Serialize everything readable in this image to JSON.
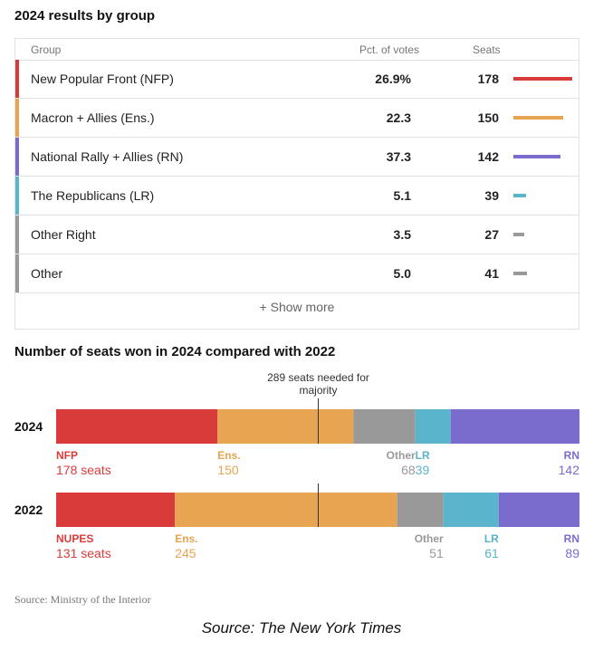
{
  "table": {
    "title": "2024 results by group",
    "headers": {
      "group": "Group",
      "pct": "Pct. of votes",
      "seats": "Seats"
    },
    "rows": [
      {
        "name": "New Popular Front (NFP)",
        "pct": "26.9%",
        "seats": "178",
        "seats_value": 178,
        "color": "#d93b3b"
      },
      {
        "name": "Macron + Allies (Ens.)",
        "pct": "22.3",
        "seats": "150",
        "seats_value": 150,
        "color": "#e7a451"
      },
      {
        "name": "National Rally + Allies (RN)",
        "pct": "37.3",
        "seats": "142",
        "seats_value": 142,
        "color": "#7a6ccd"
      },
      {
        "name": "The Republicans (LR)",
        "pct": "5.1",
        "seats": "39",
        "seats_value": 39,
        "color": "#5ab4cb"
      },
      {
        "name": "Other Right",
        "pct": "3.5",
        "seats": "27",
        "seats_value": 27,
        "color": "#999999"
      },
      {
        "name": "Other",
        "pct": "5.0",
        "seats": "41",
        "seats_value": 41,
        "color": "#999999"
      }
    ],
    "show_more": "+ Show more"
  },
  "chart_data": {
    "type": "bar",
    "title": "Number of seats won in 2024 compared with 2022",
    "annotation": "289 seats needed for majority",
    "majority": 289,
    "total": 577,
    "years": [
      {
        "year": "2024",
        "segments": [
          {
            "label": "NFP",
            "value": 178,
            "value_text": "178 seats",
            "color": "#d93b3b",
            "label_align": "left"
          },
          {
            "label": "Ens.",
            "value": 150,
            "value_text": "150",
            "color": "#e7a451",
            "label_align": "left"
          },
          {
            "label": "Other",
            "value": 68,
            "value_text": "68",
            "color": "#999999",
            "label_align": "right"
          },
          {
            "label": "LR",
            "value": 39,
            "value_text": "39",
            "color": "#5ab4cb",
            "label_align": "left"
          },
          {
            "label": "RN",
            "value": 142,
            "value_text": "142",
            "color": "#7a6ccd",
            "label_align": "right"
          }
        ]
      },
      {
        "year": "2022",
        "segments": [
          {
            "label": "NUPES",
            "value": 131,
            "value_text": "131 seats",
            "color": "#d93b3b",
            "label_align": "left"
          },
          {
            "label": "Ens.",
            "value": 245,
            "value_text": "245",
            "color": "#e7a451",
            "label_align": "left"
          },
          {
            "label": "Other",
            "value": 51,
            "value_text": "51",
            "color": "#999999",
            "label_align": "right"
          },
          {
            "label": "LR",
            "value": 61,
            "value_text": "61",
            "color": "#5ab4cb",
            "label_align": "right"
          },
          {
            "label": "RN",
            "value": 89,
            "value_text": "89",
            "color": "#7a6ccd",
            "label_align": "right"
          }
        ]
      }
    ]
  },
  "source": "Source: Ministry of the Interior",
  "caption": "Source: The New York Times"
}
